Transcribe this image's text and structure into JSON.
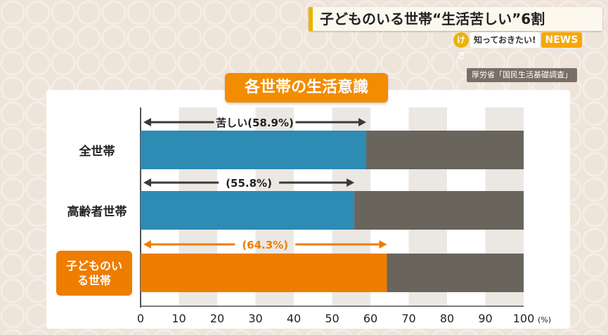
{
  "headline": "子どものいる世帯“生活苦しい”6割",
  "brand": {
    "logo": "けさ",
    "tagline": "知っておきたい!",
    "news": "NEWS"
  },
  "source": "厚労省「国民生活基礎調査」",
  "chart_data": {
    "type": "bar",
    "orientation": "horizontal",
    "stacked": true,
    "title": "各世帯の生活意識",
    "categories": [
      "全世帯",
      "高齢者世帯",
      "子どものいる世帯"
    ],
    "series": [
      {
        "name": "苦しい",
        "values": [
          58.9,
          55.8,
          64.3
        ]
      },
      {
        "values": [
          41.1,
          44.2,
          35.7
        ]
      }
    ],
    "annotations": [
      "苦しい(58.9%)",
      "(55.8%)",
      "(64.3%)"
    ],
    "xlim": [
      0,
      100
    ],
    "xticks": [
      "0",
      "10",
      "20",
      "30",
      "40",
      "50",
      "60",
      "70",
      "80",
      "90",
      "100"
    ],
    "xunit": "(%)",
    "colors": {
      "primary": "#2e8bb3",
      "rest": "#6a655c",
      "highlight": "#ee7d00",
      "arrow": "#3a3a3a"
    },
    "highlight_index": 2,
    "grid": "alternating-bands"
  }
}
